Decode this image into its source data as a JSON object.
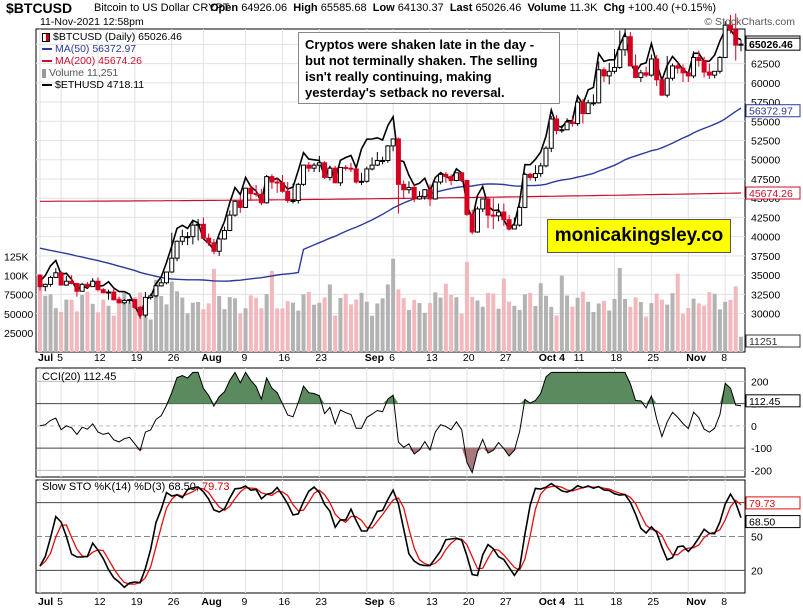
{
  "header": {
    "symbol": "$BTCUSD",
    "description": "Bitcoin to US Dollar  CRYPT",
    "date": "11-Nov-2021 12:58pm",
    "open_label": "Open",
    "open": "64926.06",
    "high_label": "High",
    "high": "65585.68",
    "low_label": "Low",
    "low": "64130.37",
    "last_label": "Last",
    "last": "65026.46",
    "volume_label": "Volume",
    "volume": "11.3K",
    "chg_label": "Chg",
    "chg": "+100.40 (+0.15%)",
    "copyright": "© StockCharts.com"
  },
  "legend": {
    "price": "$BTCUSD (Daily) 65026.46",
    "ma50": "MA(50) 56372.97",
    "ma200": "MA(200) 45674.26",
    "volume": "Volume 11,251",
    "eth": "$ETHUSD 4718.11"
  },
  "annotation": "Cryptos were shaken late in the day - but not terminally shaken. The selling isn't really continuing, making yesterday's setback no reversal.",
  "watermark": "monicakingsley.co",
  "colors": {
    "up": "#000000",
    "down": "#d40020",
    "ma50": "#2c3a9a",
    "ma200": "#c8102e",
    "vol_up": "#b3b3b3",
    "vol_down": "#f2b8bd",
    "cci_fill": "#5b8a5e",
    "cci_neg_fill": "#a8797c",
    "sto_k": "#000000",
    "sto_d": "#e01010"
  },
  "indicators": {
    "cci_label": "CCI(20) 112.45",
    "sto_label": "Slow STO %K(14) %D(3) 68.50,",
    "sto_d_value": "79.73"
  },
  "chart_data": [
    {
      "type": "candlestick",
      "title": "$BTCUSD (Daily) 65026.46",
      "x": [
        "Jul 1",
        "Jul 2",
        "Jul 3",
        "Jul 4",
        "Jul 5",
        "Jul 6",
        "Jul 7",
        "Jul 8",
        "Jul 9",
        "Jul 10",
        "Jul 11",
        "Jul 12",
        "Jul 13",
        "Jul 14",
        "Jul 15",
        "Jul 16",
        "Jul 17",
        "Jul 18",
        "Jul 19",
        "Jul 20",
        "Jul 21",
        "Jul 22",
        "Jul 23",
        "Jul 24",
        "Jul 25",
        "Jul 26",
        "Jul 27",
        "Jul 28",
        "Jul 29",
        "Jul 30",
        "Jul 31",
        "Aug 1",
        "Aug 2",
        "Aug 3",
        "Aug 4",
        "Aug 5",
        "Aug 6",
        "Aug 7",
        "Aug 8",
        "Aug 9",
        "Aug 10",
        "Aug 11",
        "Aug 12",
        "Aug 13",
        "Aug 14",
        "Aug 15",
        "Aug 16",
        "Aug 17",
        "Aug 18",
        "Aug 19",
        "Aug 20",
        "Aug 21",
        "Aug 22",
        "Aug 23",
        "Aug 24",
        "Aug 25",
        "Aug 26",
        "Aug 27",
        "Aug 28",
        "Aug 29",
        "Aug 30",
        "Aug 31",
        "Sep 1",
        "Sep 2",
        "Sep 3",
        "Sep 4",
        "Sep 5",
        "Sep 6",
        "Sep 7",
        "Sep 8",
        "Sep 9",
        "Sep 10",
        "Sep 11",
        "Sep 12",
        "Sep 13",
        "Sep 14",
        "Sep 15",
        "Sep 16",
        "Sep 17",
        "Sep 18",
        "Sep 19",
        "Sep 20",
        "Sep 21",
        "Sep 22",
        "Sep 23",
        "Sep 24",
        "Sep 25",
        "Sep 26",
        "Sep 27",
        "Sep 28",
        "Sep 29",
        "Sep 30",
        "Oct 1",
        "Oct 2",
        "Oct 3",
        "Oct 4",
        "Oct 5",
        "Oct 6",
        "Oct 7",
        "Oct 8",
        "Oct 9",
        "Oct 10",
        "Oct 11",
        "Oct 12",
        "Oct 13",
        "Oct 14",
        "Oct 15",
        "Oct 16",
        "Oct 17",
        "Oct 18",
        "Oct 19",
        "Oct 20",
        "Oct 21",
        "Oct 22",
        "Oct 23",
        "Oct 24",
        "Oct 25",
        "Oct 26",
        "Oct 27",
        "Oct 28",
        "Oct 29",
        "Oct 30",
        "Oct 31",
        "Nov 1",
        "Nov 2",
        "Nov 3",
        "Nov 4",
        "Nov 5",
        "Nov 6",
        "Nov 7",
        "Nov 8",
        "Nov 9",
        "Nov 10",
        "Nov 11"
      ],
      "open": [
        35000,
        33500,
        33800,
        34700,
        35300,
        33700,
        34200,
        33900,
        32900,
        33800,
        33500,
        34200,
        33100,
        32700,
        32800,
        31800,
        31400,
        31700,
        31800,
        30800,
        29800,
        32100,
        32300,
        33600,
        34000,
        35400,
        37200,
        39400,
        40000,
        40000,
        41500,
        41600,
        39800,
        39200,
        38100,
        39700,
        40800,
        42800,
        44600,
        43800,
        46300,
        45600,
        45500,
        44400,
        47800,
        47100,
        47000,
        45900,
        44700,
        44700,
        46800,
        49300,
        48900,
        49300,
        49600,
        47700,
        48900,
        47000,
        49000,
        48900,
        48800,
        47100,
        47200,
        48800,
        49300,
        49900,
        49900,
        51800,
        52700,
        46800,
        46100,
        46400,
        44900,
        45200,
        46100,
        44900,
        47100,
        48100,
        47800,
        47300,
        48300,
        47300,
        42900,
        40600,
        43600,
        44900,
        42800,
        42700,
        43200,
        42200,
        41000,
        41500,
        43800,
        48100,
        47700,
        48200,
        49200,
        51500,
        55300,
        53800,
        53900,
        54900,
        54700,
        57500,
        56000,
        57400,
        57400,
        61700,
        60900,
        61500,
        62000,
        64300,
        66000,
        62200,
        60700,
        61300,
        61000,
        63100,
        60400,
        58400,
        60600,
        62200,
        61900,
        61300,
        60900,
        63300,
        62900,
        61400,
        61000,
        61500,
        63300,
        67500,
        66900,
        64900
      ],
      "high": [
        35100,
        33900,
        34900,
        35900,
        35500,
        34900,
        35000,
        34000,
        34000,
        34100,
        34600,
        34700,
        33300,
        33100,
        33200,
        32200,
        31900,
        31900,
        31900,
        31000,
        32800,
        32600,
        33600,
        34500,
        35400,
        40500,
        39500,
        40900,
        40600,
        42200,
        42300,
        42500,
        40400,
        39700,
        39900,
        41300,
        43400,
        44700,
        45300,
        46300,
        46700,
        46700,
        46200,
        47800,
        48100,
        47700,
        48000,
        47100,
        46900,
        47000,
        49300,
        49700,
        49600,
        50500,
        49800,
        49200,
        49200,
        49000,
        49300,
        49600,
        48900,
        48300,
        49100,
        50300,
        51000,
        50400,
        51900,
        52700,
        52900,
        47300,
        47200,
        46900,
        45900,
        46200,
        46800,
        47200,
        48400,
        48400,
        48100,
        48200,
        48300,
        47400,
        43500,
        43900,
        44900,
        45200,
        45000,
        44300,
        44300,
        42800,
        42500,
        44000,
        48300,
        48300,
        49300,
        49600,
        51800,
        55700,
        55800,
        54500,
        55400,
        55700,
        57800,
        57900,
        57800,
        58500,
        62800,
        62000,
        62600,
        64400,
        66800,
        67000,
        66600,
        63700,
        61700,
        62100,
        63700,
        63600,
        60600,
        63500,
        62500,
        62700,
        62400,
        61500,
        64100,
        64200,
        63400,
        62500,
        61500,
        63500,
        68000,
        68800,
        69000,
        65600
      ],
      "low": [
        33000,
        32900,
        33500,
        34600,
        33700,
        33600,
        33800,
        32200,
        32900,
        33300,
        33500,
        32900,
        32700,
        31800,
        31700,
        31300,
        31200,
        31300,
        30600,
        29300,
        29500,
        31800,
        32100,
        33500,
        33800,
        35300,
        36800,
        38900,
        38900,
        39000,
        39500,
        39700,
        38800,
        37700,
        37500,
        39600,
        40700,
        42600,
        43100,
        43800,
        44700,
        45200,
        44100,
        44300,
        46200,
        45700,
        45700,
        44400,
        44300,
        44300,
        46600,
        48400,
        48400,
        48400,
        47500,
        47300,
        47200,
        46600,
        48600,
        48400,
        46900,
        46700,
        47000,
        48600,
        49200,
        49400,
        49600,
        51100,
        43000,
        45000,
        45600,
        44500,
        44800,
        44800,
        44000,
        44800,
        46800,
        47000,
        46700,
        47200,
        47100,
        42700,
        40300,
        40500,
        43200,
        41100,
        41000,
        42000,
        41400,
        40900,
        41000,
        41300,
        43700,
        47300,
        47200,
        47800,
        49000,
        51000,
        53300,
        53500,
        53900,
        54300,
        54400,
        54700,
        56000,
        57000,
        57300,
        60100,
        59800,
        61200,
        61800,
        63500,
        62200,
        60600,
        60100,
        60700,
        60800,
        59600,
        58300,
        58100,
        60300,
        61200,
        60100,
        60100,
        60600,
        62100,
        60700,
        60500,
        60600,
        61200,
        63200,
        66400,
        62900,
        64100
      ],
      "close": [
        33500,
        33800,
        34700,
        35300,
        33700,
        34200,
        33900,
        32900,
        33800,
        33500,
        34200,
        33100,
        32700,
        32800,
        31800,
        31400,
        31700,
        31800,
        30800,
        29800,
        32100,
        32300,
        33600,
        34000,
        35400,
        37200,
        39400,
        40000,
        40000,
        41500,
        41600,
        39800,
        39200,
        38100,
        39700,
        40800,
        42800,
        44600,
        43800,
        46300,
        45600,
        45500,
        44400,
        47800,
        47100,
        47000,
        45900,
        44700,
        44700,
        46800,
        49300,
        48900,
        49300,
        49600,
        47700,
        48900,
        47000,
        49000,
        48900,
        48800,
        47100,
        47200,
        48800,
        49300,
        49900,
        49900,
        51800,
        52700,
        46800,
        46100,
        46400,
        44900,
        45200,
        46100,
        44900,
        47100,
        48100,
        47800,
        47300,
        48300,
        47300,
        42900,
        40600,
        43600,
        44900,
        42800,
        42700,
        43200,
        42200,
        41000,
        41500,
        43800,
        48100,
        47700,
        48200,
        49200,
        51500,
        55300,
        53800,
        53900,
        54900,
        54700,
        57500,
        56000,
        57400,
        57400,
        61700,
        60900,
        61500,
        62000,
        64300,
        66000,
        62200,
        60700,
        61300,
        61000,
        63100,
        60400,
        58400,
        60600,
        62200,
        61900,
        61300,
        60900,
        63300,
        62900,
        61400,
        61000,
        61500,
        63300,
        67500,
        66900,
        64900,
        65026
      ],
      "ylim": [
        25000,
        67000
      ],
      "y_ticks": [
        "30000",
        "32500",
        "35000",
        "37500",
        "40000",
        "42500",
        "45000",
        "47500",
        "50000",
        "52500",
        "55000",
        "57500",
        "60000",
        "62500",
        "65000"
      ],
      "x_tick_labels": [
        "Jul",
        "5",
        "12",
        "19",
        "26",
        "Aug",
        "9",
        "16",
        "23",
        "Sep",
        "6",
        "13",
        "20",
        "27",
        "Oct 4",
        "11",
        "18",
        "25",
        "Nov",
        "8"
      ],
      "ma50_label": "56372.97",
      "ma200_label": "45674.26",
      "eth_label": "4718.11",
      "last_label": "65026.46",
      "volume_label": "11251",
      "volume_ticks": [
        "25000",
        "50000",
        "75000",
        "100K",
        "125K"
      ]
    },
    {
      "type": "line",
      "title": "CCI(20) 112.45",
      "y_ticks": [
        "200",
        "100",
        "0",
        "-100",
        "-200"
      ],
      "ylim": [
        -230,
        260
      ],
      "last_label": "112.45"
    },
    {
      "type": "line",
      "title": "Slow STO %K(14) %D(3) 68.50, 79.73",
      "y_ticks": [
        "80",
        "50",
        "20"
      ],
      "ylim": [
        0,
        100
      ],
      "k_label": "68.50",
      "d_label": "79.73"
    }
  ]
}
